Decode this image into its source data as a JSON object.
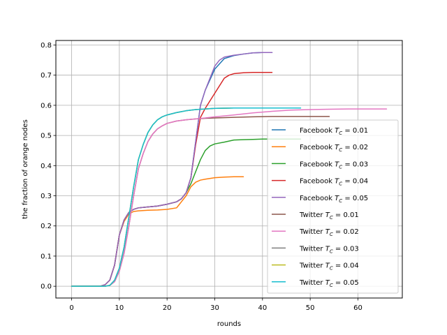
{
  "chart_data": {
    "type": "line",
    "title": "",
    "xlabel": "rounds",
    "ylabel": "the fraction of orange nodes",
    "xlim": [
      -3.3,
      69.3
    ],
    "ylim": [
      -0.039,
      0.815
    ],
    "xticks": [
      0,
      10,
      20,
      30,
      40,
      50,
      60
    ],
    "yticks": [
      0.0,
      0.1,
      0.2,
      0.3,
      0.4,
      0.5,
      0.6,
      0.7,
      0.8
    ],
    "xtick_labels": [
      "0",
      "10",
      "20",
      "30",
      "40",
      "50",
      "60"
    ],
    "ytick_labels": [
      "0.0",
      "0.1",
      "0.2",
      "0.3",
      "0.4",
      "0.5",
      "0.6",
      "0.7",
      "0.8"
    ],
    "grid": true,
    "legend_position": "center-right",
    "series": [
      {
        "name": "Facebook T_C = 0.01",
        "label_prefix": "Facebook",
        "label_value": "0.01",
        "color": "#1f77b4",
        "x": [
          0,
          6,
          7,
          8,
          9,
          10,
          11,
          12,
          13,
          14,
          16,
          18,
          20,
          22,
          23,
          24,
          25,
          26,
          27,
          28,
          30,
          32,
          34,
          36,
          38,
          40,
          42
        ],
        "y": [
          0,
          0,
          0.005,
          0.02,
          0.07,
          0.17,
          0.22,
          0.245,
          0.255,
          0.26,
          0.263,
          0.266,
          0.272,
          0.28,
          0.29,
          0.31,
          0.36,
          0.48,
          0.6,
          0.65,
          0.72,
          0.755,
          0.765,
          0.77,
          0.774,
          0.775,
          0.775
        ]
      },
      {
        "name": "Facebook T_C = 0.02",
        "label_prefix": "Facebook",
        "label_value": "0.02",
        "color": "#ff7f0e",
        "x": [
          0,
          6,
          7,
          8,
          9,
          10,
          11,
          12,
          13,
          14,
          16,
          18,
          20,
          22,
          23,
          24,
          25,
          26,
          27,
          28,
          30,
          32,
          34,
          36
        ],
        "y": [
          0,
          0,
          0.005,
          0.02,
          0.07,
          0.17,
          0.215,
          0.24,
          0.248,
          0.25,
          0.252,
          0.253,
          0.255,
          0.26,
          0.28,
          0.3,
          0.33,
          0.345,
          0.352,
          0.355,
          0.36,
          0.362,
          0.363,
          0.363
        ]
      },
      {
        "name": "Facebook T_C = 0.03",
        "label_prefix": "Facebook",
        "label_value": "0.03",
        "color": "#2ca02c",
        "x": [
          0,
          6,
          7,
          8,
          9,
          10,
          11,
          12,
          13,
          14,
          16,
          18,
          20,
          22,
          23,
          24,
          25,
          26,
          27,
          28,
          29,
          30,
          32,
          34,
          36,
          38,
          40,
          42,
          48
        ],
        "y": [
          0,
          0,
          0.005,
          0.02,
          0.07,
          0.17,
          0.22,
          0.245,
          0.255,
          0.26,
          0.263,
          0.266,
          0.272,
          0.28,
          0.29,
          0.31,
          0.34,
          0.38,
          0.42,
          0.45,
          0.465,
          0.472,
          0.478,
          0.485,
          0.486,
          0.487,
          0.488,
          0.488,
          0.488
        ]
      },
      {
        "name": "Facebook T_C = 0.04",
        "label_prefix": "Facebook",
        "label_value": "0.04",
        "color": "#d62728",
        "x": [
          0,
          6,
          7,
          8,
          9,
          10,
          11,
          12,
          13,
          14,
          16,
          18,
          20,
          22,
          23,
          24,
          25,
          26,
          27,
          28,
          30,
          32,
          33,
          34,
          36,
          38,
          40,
          42
        ],
        "y": [
          0,
          0,
          0.005,
          0.02,
          0.07,
          0.17,
          0.22,
          0.245,
          0.255,
          0.26,
          0.263,
          0.266,
          0.272,
          0.28,
          0.29,
          0.31,
          0.36,
          0.47,
          0.56,
          0.59,
          0.64,
          0.69,
          0.7,
          0.705,
          0.708,
          0.709,
          0.709,
          0.709
        ]
      },
      {
        "name": "Facebook T_C = 0.05",
        "label_prefix": "Facebook",
        "label_value": "0.05",
        "color": "#9467bd",
        "x": [
          0,
          6,
          7,
          8,
          9,
          10,
          11,
          12,
          13,
          14,
          16,
          18,
          20,
          22,
          23,
          24,
          25,
          26,
          27,
          28,
          29,
          30,
          31,
          32,
          34,
          36,
          38,
          40,
          42
        ],
        "y": [
          0,
          0,
          0.005,
          0.02,
          0.07,
          0.17,
          0.22,
          0.245,
          0.255,
          0.26,
          0.263,
          0.266,
          0.272,
          0.28,
          0.29,
          0.31,
          0.36,
          0.48,
          0.6,
          0.65,
          0.69,
          0.73,
          0.75,
          0.76,
          0.766,
          0.77,
          0.774,
          0.775,
          0.775
        ]
      },
      {
        "name": "Twitter T_C = 0.01",
        "label_prefix": "Twitter",
        "label_value": "0.01",
        "color": "#8c564b",
        "x": [
          0,
          6,
          7,
          8,
          9,
          10,
          11,
          12,
          13,
          14,
          15,
          16,
          17,
          18,
          19,
          20,
          22,
          24,
          26,
          28,
          30,
          34,
          38,
          42,
          46,
          50,
          54
        ],
        "y": [
          0,
          0,
          0,
          0.003,
          0.015,
          0.05,
          0.11,
          0.2,
          0.3,
          0.39,
          0.44,
          0.48,
          0.505,
          0.522,
          0.532,
          0.54,
          0.548,
          0.552,
          0.555,
          0.557,
          0.558,
          0.56,
          0.562,
          0.563,
          0.563,
          0.563,
          0.563
        ]
      },
      {
        "name": "Twitter T_C = 0.02",
        "label_prefix": "Twitter",
        "label_value": "0.02",
        "color": "#e377c2",
        "x": [
          0,
          6,
          7,
          8,
          9,
          10,
          11,
          12,
          13,
          14,
          15,
          16,
          17,
          18,
          19,
          20,
          22,
          24,
          26,
          28,
          30,
          34,
          38,
          42,
          46,
          50,
          54,
          58,
          62,
          66
        ],
        "y": [
          0,
          0,
          0,
          0.003,
          0.015,
          0.05,
          0.11,
          0.2,
          0.3,
          0.39,
          0.44,
          0.48,
          0.505,
          0.522,
          0.532,
          0.54,
          0.548,
          0.552,
          0.555,
          0.558,
          0.562,
          0.568,
          0.575,
          0.58,
          0.584,
          0.586,
          0.587,
          0.588,
          0.588,
          0.588
        ]
      },
      {
        "name": "Twitter T_C = 0.03",
        "label_prefix": "Twitter",
        "label_value": "0.03",
        "color": "#7f7f7f",
        "x": [
          0,
          6,
          7,
          8,
          9,
          10,
          11,
          12,
          13,
          14,
          15,
          16,
          17,
          18,
          19,
          20,
          22,
          24,
          26,
          28,
          30,
          34,
          38,
          42,
          46
        ],
        "y": [
          0,
          0,
          0,
          0.003,
          0.02,
          0.06,
          0.13,
          0.23,
          0.33,
          0.42,
          0.47,
          0.51,
          0.535,
          0.552,
          0.562,
          0.568,
          0.576,
          0.582,
          0.586,
          0.588,
          0.59,
          0.591,
          0.591,
          0.591,
          0.591
        ]
      },
      {
        "name": "Twitter T_C = 0.04",
        "label_prefix": "Twitter",
        "label_value": "0.04",
        "color": "#bcbd22",
        "x": [
          0,
          6,
          7,
          8,
          9,
          10,
          11,
          12,
          13,
          14,
          15,
          16,
          17,
          18,
          19,
          20,
          22,
          24,
          26,
          28,
          30,
          34,
          38,
          42,
          46
        ],
        "y": [
          0,
          0,
          0,
          0.003,
          0.02,
          0.06,
          0.13,
          0.23,
          0.33,
          0.42,
          0.47,
          0.51,
          0.535,
          0.552,
          0.562,
          0.568,
          0.576,
          0.582,
          0.586,
          0.588,
          0.59,
          0.591,
          0.591,
          0.591,
          0.591
        ]
      },
      {
        "name": "Twitter T_C = 0.05",
        "label_prefix": "Twitter",
        "label_value": "0.05",
        "color": "#17becf",
        "x": [
          0,
          6,
          7,
          8,
          9,
          10,
          11,
          12,
          13,
          14,
          15,
          16,
          17,
          18,
          19,
          20,
          22,
          24,
          26,
          28,
          30,
          34,
          38,
          42,
          46,
          48
        ],
        "y": [
          0,
          0,
          0,
          0.003,
          0.02,
          0.06,
          0.13,
          0.23,
          0.33,
          0.42,
          0.47,
          0.51,
          0.535,
          0.552,
          0.562,
          0.568,
          0.576,
          0.582,
          0.586,
          0.588,
          0.59,
          0.591,
          0.591,
          0.591,
          0.591,
          0.591
        ]
      }
    ]
  }
}
